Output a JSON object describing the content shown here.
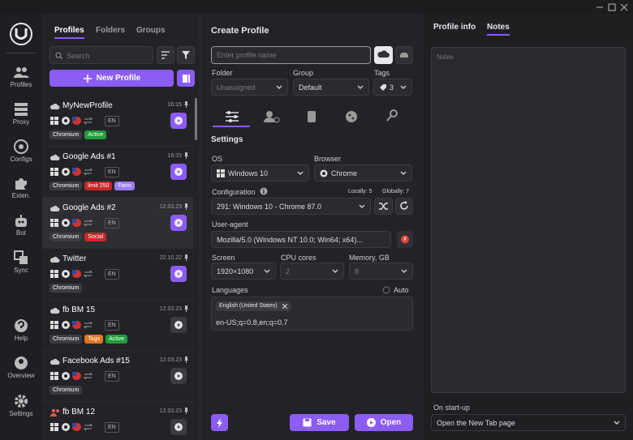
{
  "nav": {
    "items": [
      "Profiles",
      "Proxy",
      "Configs",
      "Exten.",
      "Bot",
      "Sync",
      "Help",
      "Overview",
      "Settings"
    ]
  },
  "profiles_panel": {
    "tabs": [
      "Profiles",
      "Folders",
      "Groups"
    ],
    "search_placeholder": "Search",
    "new_profile": "New Profile",
    "profiles": [
      {
        "name": "MyNewProfile",
        "time": "16:15",
        "language": "EN",
        "button_color": "#8b5cf6",
        "tags": [
          {
            "label": "Chromium",
            "color": "#3b3b41"
          },
          {
            "label": "Active",
            "color": "#1f9d3a"
          }
        ]
      },
      {
        "name": "Google Ads #1",
        "time": "16:15",
        "language": "EN",
        "button_color": "#8b5cf6",
        "tags": [
          {
            "label": "Chromium",
            "color": "#3b3b41"
          },
          {
            "label": "limit 250",
            "color": "#c62828"
          },
          {
            "label": "Farm",
            "color": "#9c7cf2"
          }
        ]
      },
      {
        "name": "Google Ads #2",
        "time": "12.03.23",
        "language": "EN",
        "button_color": "#8b5cf6",
        "tags": [
          {
            "label": "Chromium",
            "color": "#3b3b41"
          },
          {
            "label": "Social",
            "color": "#c62828"
          }
        ]
      },
      {
        "name": "Twitter",
        "time": "22.10.22",
        "language": "EN",
        "button_color": "#8b5cf6",
        "tags": [
          {
            "label": "Chromium",
            "color": "#3b3b41"
          }
        ]
      },
      {
        "name": "fb BM 15",
        "time": "12.03.23",
        "language": "EN",
        "button_color": "#3b3b41",
        "tags": [
          {
            "label": "Chromium",
            "color": "#3b3b41"
          },
          {
            "label": "Tags",
            "color": "#e0761d"
          },
          {
            "label": "Active",
            "color": "#1f9d3a"
          }
        ]
      },
      {
        "name": "Facebook Ads #15",
        "time": "12.03.23",
        "language": "EN",
        "button_color": "#3b3b41",
        "tags": [
          {
            "label": "Chromium",
            "color": "#3b3b41"
          }
        ]
      },
      {
        "name": "fb BM 12",
        "time": "12.03.23",
        "language": "EN",
        "button_color": "#3b3b41",
        "tags": []
      }
    ]
  },
  "form": {
    "title": "Create Profile",
    "name_placeholder": "Enter profile name",
    "folder": {
      "label": "Folder",
      "value": "Unassigned"
    },
    "group": {
      "label": "Group",
      "value": "Default"
    },
    "tags": {
      "label": "Tags",
      "value": "3"
    },
    "settings_title": "Settings",
    "os": {
      "label": "OS",
      "value": "Windows 10"
    },
    "browser": {
      "label": "Browser",
      "value": "Chrome"
    },
    "configuration": {
      "label": "Configuration",
      "locally": "Locally: 5",
      "globally": "Globally: 7",
      "value": "291: Windows 10 - Chrome 87.0"
    },
    "user_agent": {
      "label": "User-agent",
      "value": "Mozilla/5.0 (Windows NT 10.0; Win64; x64)..."
    },
    "screen": {
      "label": "Screen",
      "value": "1920×1080"
    },
    "cpu": {
      "label": "CPU cores",
      "value": "2"
    },
    "memory": {
      "label": "Memory, GB",
      "value": "8"
    },
    "languages": {
      "label": "Languages",
      "auto": "Auto",
      "chip": "English (United States)",
      "value": "en-US;q=0.8,en;q=0.7"
    },
    "save": "Save",
    "open": "Open"
  },
  "info_panel": {
    "tabs": [
      "Profile info",
      "Notes"
    ],
    "notes_placeholder": "Notes",
    "startup_label": "On start-up",
    "startup_value": "Open the New Tab page"
  }
}
